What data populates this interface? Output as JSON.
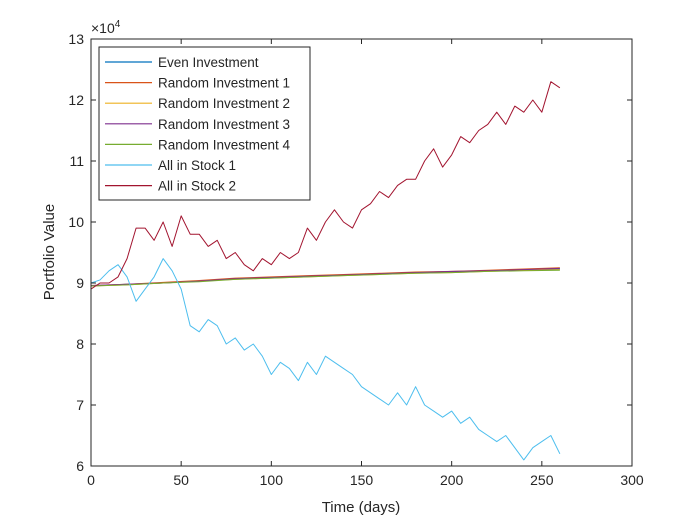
{
  "chart_data": {
    "type": "line",
    "xlabel": "Time (days)",
    "ylabel": "Portfolio Value",
    "exponent_label": "×10",
    "exponent_power": "4",
    "xlim": [
      0,
      300
    ],
    "ylim": [
      6,
      13
    ],
    "xticks": [
      0,
      50,
      100,
      150,
      200,
      250,
      300
    ],
    "yticks": [
      6,
      7,
      8,
      9,
      10,
      11,
      12,
      13
    ],
    "legend_position": "top-left",
    "grid": false,
    "series": [
      {
        "name": "Even Investment",
        "color": "#0072BD",
        "x": [
          0,
          20,
          40,
          60,
          80,
          100,
          120,
          140,
          160,
          180,
          200,
          220,
          240,
          260
        ],
        "y": [
          8.95,
          8.98,
          9.0,
          9.03,
          9.07,
          9.09,
          9.11,
          9.13,
          9.15,
          9.17,
          9.18,
          9.2,
          9.22,
          9.23
        ]
      },
      {
        "name": "Random Investment 1",
        "color": "#D95319",
        "x": [
          0,
          20,
          40,
          60,
          80,
          100,
          120,
          140,
          160,
          180,
          200,
          220,
          240,
          260
        ],
        "y": [
          8.96,
          8.98,
          9.01,
          9.04,
          9.08,
          9.1,
          9.12,
          9.14,
          9.16,
          9.18,
          9.19,
          9.21,
          9.23,
          9.25
        ]
      },
      {
        "name": "Random Investment 2",
        "color": "#EDB120",
        "x": [
          0,
          20,
          40,
          60,
          80,
          100,
          120,
          140,
          160,
          180,
          200,
          220,
          240,
          260
        ],
        "y": [
          8.95,
          8.97,
          9.0,
          9.03,
          9.06,
          9.08,
          9.1,
          9.12,
          9.14,
          9.16,
          9.17,
          9.19,
          9.21,
          9.22
        ]
      },
      {
        "name": "Random Investment 3",
        "color": "#7E2F8E",
        "x": [
          0,
          20,
          40,
          60,
          80,
          100,
          120,
          140,
          160,
          180,
          200,
          220,
          240,
          260
        ],
        "y": [
          8.96,
          8.98,
          9.0,
          9.03,
          9.07,
          9.09,
          9.11,
          9.13,
          9.15,
          9.17,
          9.19,
          9.2,
          9.22,
          9.24
        ]
      },
      {
        "name": "Random Investment 4",
        "color": "#77AC30",
        "x": [
          0,
          20,
          40,
          60,
          80,
          100,
          120,
          140,
          160,
          180,
          200,
          220,
          240,
          260
        ],
        "y": [
          8.95,
          8.97,
          9.0,
          9.02,
          9.06,
          9.08,
          9.1,
          9.12,
          9.14,
          9.16,
          9.17,
          9.19,
          9.2,
          9.21
        ]
      },
      {
        "name": "All in Stock 1",
        "color": "#4DBEEE",
        "x": [
          0,
          5,
          10,
          15,
          20,
          25,
          30,
          35,
          40,
          45,
          50,
          55,
          60,
          65,
          70,
          75,
          80,
          85,
          90,
          95,
          100,
          105,
          110,
          115,
          120,
          125,
          130,
          135,
          140,
          145,
          150,
          155,
          160,
          165,
          170,
          175,
          180,
          185,
          190,
          195,
          200,
          205,
          210,
          215,
          220,
          225,
          230,
          235,
          240,
          245,
          250,
          255,
          260
        ],
        "y": [
          9.0,
          9.05,
          9.2,
          9.3,
          9.1,
          8.7,
          8.9,
          9.1,
          9.4,
          9.2,
          8.9,
          8.3,
          8.2,
          8.4,
          8.3,
          8.0,
          8.1,
          7.9,
          8.0,
          7.8,
          7.5,
          7.7,
          7.6,
          7.4,
          7.7,
          7.5,
          7.8,
          7.7,
          7.6,
          7.5,
          7.3,
          7.2,
          7.1,
          7.0,
          7.2,
          7.0,
          7.3,
          7.0,
          6.9,
          6.8,
          6.9,
          6.7,
          6.8,
          6.6,
          6.5,
          6.4,
          6.5,
          6.3,
          6.1,
          6.3,
          6.4,
          6.5,
          6.2
        ]
      },
      {
        "name": "All in Stock 2",
        "color": "#A2142F",
        "x": [
          0,
          5,
          10,
          15,
          20,
          25,
          30,
          35,
          40,
          45,
          50,
          55,
          60,
          65,
          70,
          75,
          80,
          85,
          90,
          95,
          100,
          105,
          110,
          115,
          120,
          125,
          130,
          135,
          140,
          145,
          150,
          155,
          160,
          165,
          170,
          175,
          180,
          185,
          190,
          195,
          200,
          205,
          210,
          215,
          220,
          225,
          230,
          235,
          240,
          245,
          250,
          255,
          260
        ],
        "y": [
          8.9,
          9.0,
          9.0,
          9.1,
          9.4,
          9.9,
          9.9,
          9.7,
          10.0,
          9.6,
          10.1,
          9.8,
          9.8,
          9.6,
          9.7,
          9.4,
          9.5,
          9.3,
          9.2,
          9.4,
          9.3,
          9.5,
          9.4,
          9.5,
          9.9,
          9.7,
          10.0,
          10.2,
          10.0,
          9.9,
          10.2,
          10.3,
          10.5,
          10.4,
          10.6,
          10.7,
          10.7,
          11.0,
          11.2,
          10.9,
          11.1,
          11.4,
          11.3,
          11.5,
          11.6,
          11.8,
          11.6,
          11.9,
          11.8,
          12.0,
          11.8,
          12.3,
          12.2
        ]
      }
    ]
  }
}
